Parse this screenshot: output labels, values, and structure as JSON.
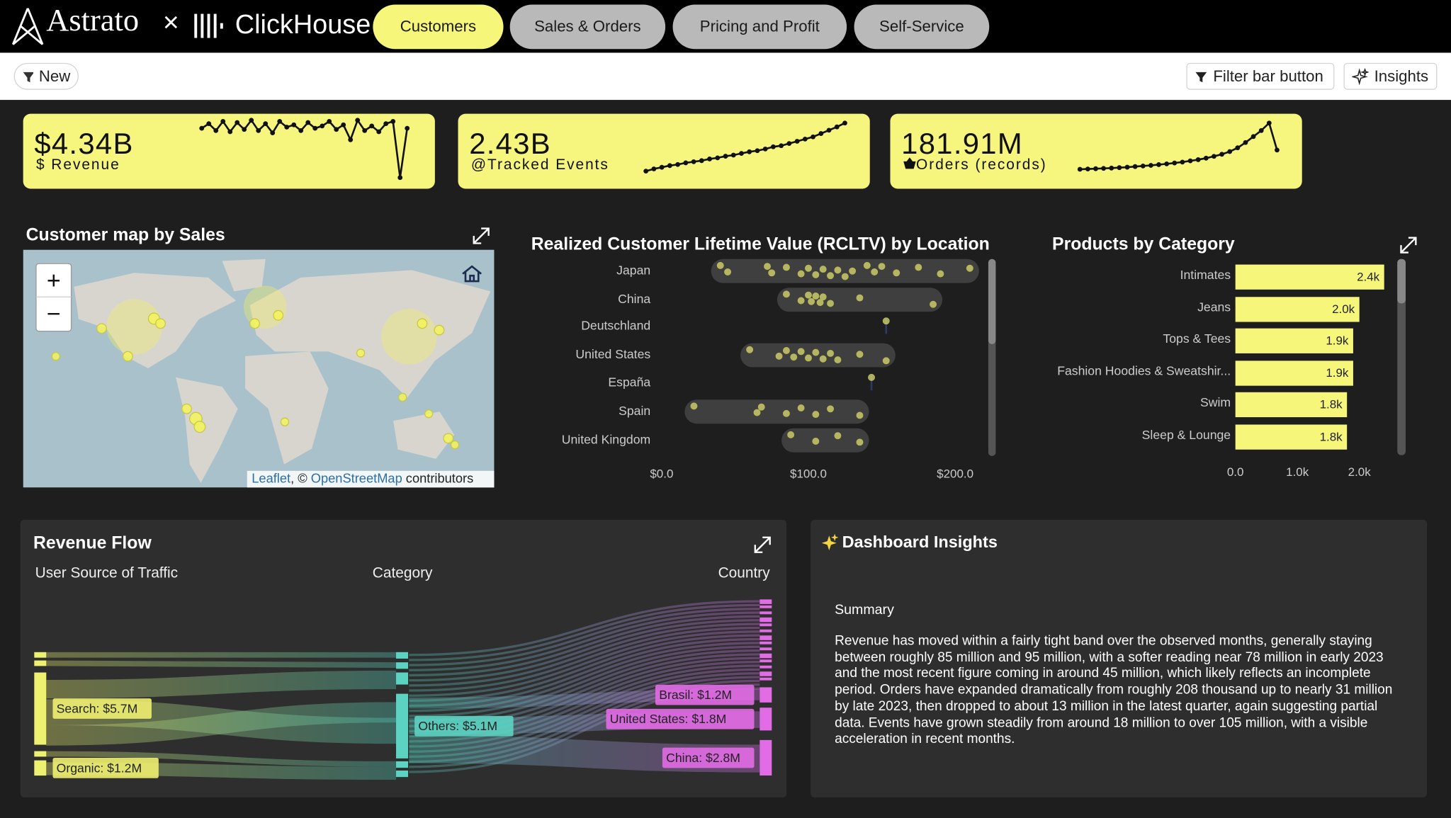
{
  "header": {
    "brand": "Astrato",
    "partner": "ClickHouse",
    "tabs": [
      "Customers",
      "Sales & Orders",
      "Pricing and Profit",
      "Self-Service"
    ]
  },
  "toolbar": {
    "new": "New",
    "filter": "Filter bar button",
    "insights": "Insights"
  },
  "kpis": [
    {
      "value": "$4.34B",
      "icon": "$",
      "label": "Revenue",
      "spark": [
        88,
        92,
        86,
        94,
        85,
        93,
        87,
        95,
        86,
        92,
        84,
        94,
        89,
        91,
        86,
        93,
        88,
        90,
        94,
        87,
        91,
        78,
        95,
        86,
        90,
        85,
        92,
        94,
        45,
        88
      ]
    },
    {
      "value": "2.43B",
      "icon": "@",
      "label": "Tracked Events",
      "spark": [
        18,
        22,
        25,
        28,
        30,
        33,
        35,
        37,
        40,
        42,
        45,
        47,
        50,
        53,
        55,
        58,
        62,
        64,
        68,
        72,
        76,
        80,
        86,
        92,
        98,
        105
      ]
    },
    {
      "value": "181.91M",
      "label": "Orders (records)",
      "spark": [
        0.2,
        0.4,
        0.6,
        0.8,
        1,
        1.3,
        1.6,
        2,
        2.4,
        2.8,
        3.3,
        3.8,
        4.4,
        5,
        5.8,
        6.6,
        7.6,
        8.8,
        10.2,
        12,
        14.5,
        18,
        22,
        26,
        31,
        13
      ]
    }
  ],
  "map": {
    "title": "Customer map by Sales",
    "zoom_in": "+",
    "zoom_out": "−",
    "attribution": [
      "Leaflet",
      ", © ",
      "OpenStreetMap",
      " contributors"
    ],
    "markers": [
      [
        -95,
        38,
        100
      ],
      [
        -80,
        43,
        4
      ],
      [
        -120,
        37,
        3
      ],
      [
        -75,
        40,
        3
      ],
      [
        -100,
        20,
        3
      ],
      [
        -155,
        20,
        2
      ],
      [
        5,
        50,
        60
      ],
      [
        15,
        45,
        3
      ],
      [
        -3,
        40,
        3
      ],
      [
        115,
        32,
        100
      ],
      [
        138,
        36,
        3
      ],
      [
        125,
        40,
        3
      ],
      [
        78,
        22,
        2
      ],
      [
        110,
        -5,
        2
      ],
      [
        -48,
        -18,
        5
      ],
      [
        -45,
        -23,
        4
      ],
      [
        -55,
        -12,
        3
      ],
      [
        20,
        -20,
        2
      ],
      [
        145,
        -30,
        3
      ],
      [
        150,
        -34,
        2
      ],
      [
        130,
        -15,
        2
      ]
    ]
  },
  "rcltv": {
    "type": "strip",
    "title": "Realized Customer Lifetime Value (RCLTV) by Location",
    "categories": [
      "Japan",
      "China",
      "Deutschland",
      "United States",
      "España",
      "Spain",
      "United Kingdom"
    ],
    "values": [
      [
        40,
        45,
        72,
        75,
        85,
        95,
        100,
        105,
        110,
        115,
        120,
        125,
        130,
        140,
        145,
        150,
        160,
        175,
        190,
        210
      ],
      [
        85,
        95,
        100,
        102,
        105,
        108,
        110,
        115,
        135,
        185
      ],
      [
        153
      ],
      [
        60,
        80,
        85,
        90,
        95,
        100,
        105,
        110,
        115,
        120,
        135,
        153
      ],
      [
        143
      ],
      [
        22,
        65,
        68,
        85,
        95,
        105,
        115,
        135
      ],
      [
        88,
        105,
        120,
        135
      ]
    ],
    "color": "#e8e87a",
    "xlim": [
      0,
      210
    ],
    "xticks": [
      {
        "value": 0,
        "label": "$0.0"
      },
      {
        "value": 100,
        "label": "$100.0"
      },
      {
        "value": 200,
        "label": "$200.0"
      }
    ]
  },
  "products": {
    "type": "bar",
    "title": "Products by Category",
    "categories": [
      "Intimates",
      "Jeans",
      "Tops & Tees",
      "Fashion Hoodies & Sweatshir...",
      "Swim",
      "Sleep & Lounge"
    ],
    "values": [
      2400,
      2000,
      1900,
      1900,
      1800,
      1800
    ],
    "value_labels": [
      "2.4k",
      "2.0k",
      "1.9k",
      "1.9k",
      "1.8k",
      "1.8k"
    ],
    "color": "#f6f67a",
    "xlim": [
      0,
      2500
    ],
    "xticks": [
      {
        "value": 0,
        "label": "0.0"
      },
      {
        "value": 1000,
        "label": "1.0k"
      },
      {
        "value": 2000,
        "label": "2.0k"
      }
    ]
  },
  "sankey": {
    "type": "sankey",
    "title": "Revenue Flow",
    "columns": [
      "User Source of Traffic",
      "Category",
      "Country"
    ],
    "nodes": [
      {
        "label": "Search: $5.7M",
        "value": 5.7,
        "column": 0
      },
      {
        "label": "Organic: $1.2M",
        "value": 1.2,
        "column": 0
      },
      {
        "label": "Others: $5.1M",
        "value": 5.1,
        "column": 1
      },
      {
        "label": "Brasil: $1.2M",
        "value": 1.2,
        "column": 2
      },
      {
        "label": "United States: $1.8M",
        "value": 1.8,
        "column": 2
      },
      {
        "label": "China: $2.8M",
        "value": 2.8,
        "column": 2
      }
    ]
  },
  "insights": {
    "title": "Dashboard Insights",
    "heading": "Summary",
    "text": "Revenue has moved within a fairly tight band over the observed months, generally staying between roughly 85 million and 95 million, with a softer reading near 78 million in early 2023 and the most recent figure coming in around 45 million, which likely reflects an incomplete period. Orders have expanded dramatically from roughly 208 thousand up to nearly 31 million by late 2023, then dropped to about 13 million in the latest quarter, again suggesting partial data. Events have grown steadily from around 18 million to over 105 million, with a visible acceleration in recent months."
  }
}
